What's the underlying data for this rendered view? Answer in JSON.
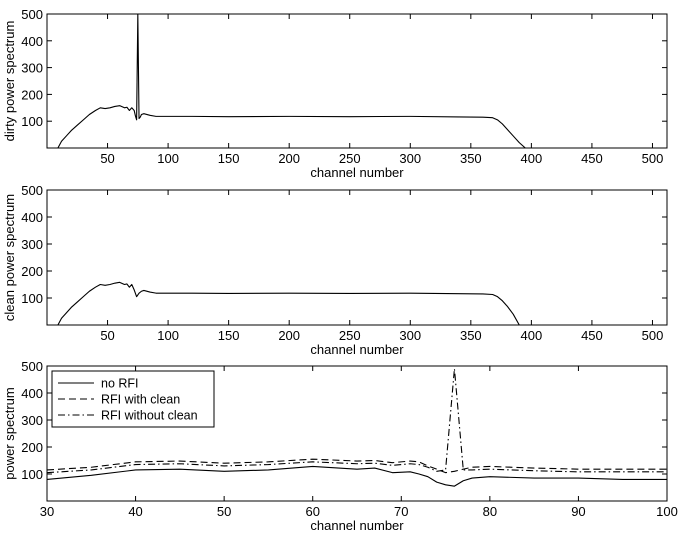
{
  "chart_data": [
    {
      "type": "line",
      "xlabel": "channel number",
      "ylabel": "dirty power spectrum",
      "xlim": [
        0,
        512
      ],
      "ylim": [
        0,
        500
      ],
      "xticks": [
        50,
        100,
        150,
        200,
        250,
        300,
        350,
        400,
        450,
        500
      ],
      "yticks": [
        100,
        200,
        300,
        400,
        500
      ],
      "grid": false,
      "series": [
        {
          "x": [
            9,
            12,
            16,
            20,
            25,
            30,
            35,
            40,
            44,
            48,
            52,
            56,
            60,
            64,
            66,
            68,
            70,
            72,
            73,
            74,
            75,
            76,
            77,
            78,
            80,
            85,
            90,
            100,
            120,
            150,
            200,
            250,
            300,
            340,
            360,
            368,
            372,
            376,
            380,
            385,
            390,
            395,
            400,
            450,
            512
          ],
          "y": [
            0,
            25,
            45,
            65,
            85,
            105,
            125,
            140,
            150,
            147,
            150,
            155,
            158,
            150,
            152,
            140,
            150,
            140,
            120,
            105,
            500,
            110,
            115,
            125,
            128,
            122,
            118,
            118,
            118,
            117,
            118,
            117,
            118,
            116,
            115,
            113,
            105,
            90,
            70,
            45,
            20,
            0,
            0,
            0,
            0
          ]
        }
      ]
    },
    {
      "type": "line",
      "xlabel": "channel number",
      "ylabel": "clean power spectrum",
      "xlim": [
        0,
        512
      ],
      "ylim": [
        0,
        500
      ],
      "xticks": [
        50,
        100,
        150,
        200,
        250,
        300,
        350,
        400,
        450,
        500
      ],
      "yticks": [
        100,
        200,
        300,
        400,
        500
      ],
      "grid": false,
      "series": [
        {
          "x": [
            9,
            12,
            16,
            20,
            25,
            30,
            35,
            40,
            44,
            48,
            52,
            56,
            60,
            64,
            66,
            68,
            70,
            72,
            74,
            76,
            78,
            80,
            85,
            90,
            100,
            120,
            150,
            200,
            250,
            300,
            340,
            360,
            368,
            372,
            376,
            380,
            385,
            390,
            400,
            450,
            512
          ],
          "y": [
            0,
            25,
            45,
            65,
            85,
            105,
            125,
            140,
            150,
            147,
            150,
            155,
            158,
            150,
            152,
            140,
            150,
            130,
            105,
            118,
            125,
            128,
            122,
            118,
            118,
            118,
            117,
            118,
            117,
            118,
            116,
            115,
            113,
            105,
            90,
            70,
            40,
            0,
            0,
            0,
            0
          ]
        }
      ]
    },
    {
      "type": "line",
      "xlabel": "channel number",
      "ylabel": "power spectrum",
      "xlim": [
        30,
        100
      ],
      "ylim": [
        0,
        500
      ],
      "xticks": [
        30,
        40,
        50,
        60,
        70,
        80,
        90,
        100
      ],
      "yticks": [
        100,
        200,
        300,
        400,
        500
      ],
      "grid": false,
      "legend": "top-left",
      "series": [
        {
          "name": "no RFI",
          "style": "solid",
          "x": [
            30,
            35,
            40,
            45,
            50,
            55,
            60,
            65,
            67,
            69,
            71,
            72,
            73,
            74,
            75,
            76,
            77,
            78,
            80,
            85,
            90,
            95,
            100
          ],
          "y": [
            80,
            95,
            115,
            118,
            110,
            115,
            128,
            118,
            122,
            105,
            108,
            100,
            90,
            70,
            60,
            55,
            75,
            85,
            90,
            85,
            85,
            80,
            80
          ]
        },
        {
          "name": "RFI with clean",
          "style": "dashed",
          "x": [
            30,
            35,
            40,
            45,
            50,
            55,
            60,
            65,
            67,
            69,
            71,
            72,
            73,
            74,
            75,
            76,
            77,
            78,
            80,
            85,
            90,
            95,
            100
          ],
          "y": [
            115,
            125,
            145,
            148,
            140,
            145,
            155,
            148,
            150,
            142,
            148,
            145,
            130,
            118,
            105,
            110,
            118,
            125,
            128,
            122,
            118,
            118,
            118
          ]
        },
        {
          "name": "RFI without clean",
          "style": "dashdot",
          "x": [
            30,
            35,
            40,
            45,
            50,
            55,
            60,
            65,
            67,
            69,
            71,
            72,
            73,
            74,
            75,
            76,
            77,
            78,
            80,
            85,
            90,
            95,
            100
          ],
          "y": [
            105,
            115,
            135,
            138,
            130,
            135,
            145,
            138,
            140,
            132,
            138,
            135,
            125,
            110,
            115,
            490,
            115,
            115,
            118,
            112,
            108,
            108,
            108
          ]
        }
      ]
    }
  ]
}
